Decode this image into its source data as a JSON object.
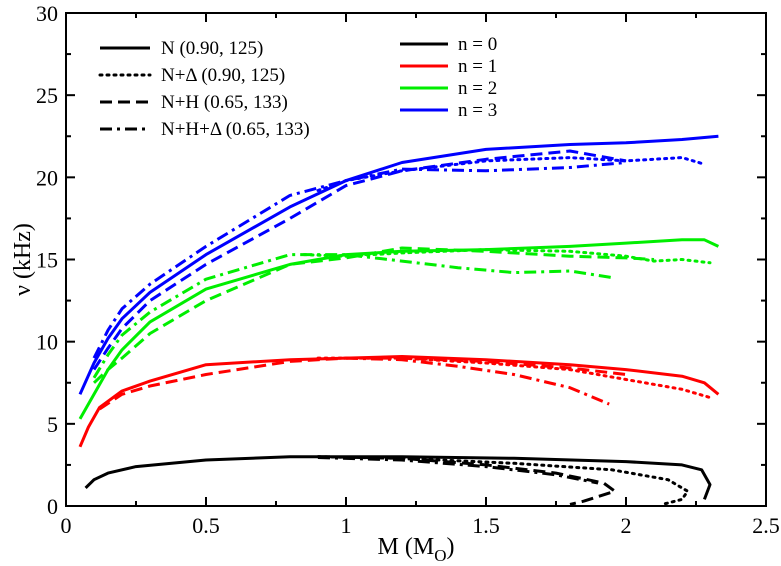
{
  "chart_data": {
    "type": "line",
    "title": "",
    "xlabel": "M (M",
    "xlabel_sub": "O",
    "xlabel_close": ")",
    "ylabel": "ν (kHz)",
    "xlim": [
      0,
      2.5
    ],
    "ylim": [
      0,
      30
    ],
    "xticks": [
      0,
      0.5,
      1,
      1.5,
      2,
      2.5
    ],
    "xtick_labels": [
      "0",
      "0.5",
      "1",
      "1.5",
      "2",
      "2.5"
    ],
    "yticks": [
      0,
      5,
      10,
      15,
      20,
      25,
      30
    ],
    "ytick_labels": [
      "0",
      "5",
      "10",
      "15",
      "20",
      "25",
      "30"
    ],
    "grid": false,
    "legend_styles": [
      {
        "label": "N (0.90, 125)",
        "dash": "solid"
      },
      {
        "label": "N+Δ (0.90, 125)",
        "dash": "dotted"
      },
      {
        "label": "N+H (0.65, 133)",
        "dash": "dashed"
      },
      {
        "label": "N+H+Δ (0.65, 133)",
        "dash": "dashdot"
      }
    ],
    "legend_modes": [
      {
        "label": "n = 0",
        "color": "#000000"
      },
      {
        "label": "n = 1",
        "color": "#ff0000"
      },
      {
        "label": "n = 2",
        "color": "#00ee00"
      },
      {
        "label": "n = 3",
        "color": "#0000ff"
      }
    ],
    "series": [
      {
        "name": "N, n=0",
        "mode": 0,
        "dash": "solid",
        "x": [
          0.07,
          0.1,
          0.15,
          0.25,
          0.5,
          0.8,
          1.2,
          1.6,
          2.0,
          2.2,
          2.27,
          2.3,
          2.28
        ],
        "y": [
          1.1,
          1.6,
          2.0,
          2.4,
          2.8,
          3.0,
          3.0,
          2.9,
          2.7,
          2.5,
          2.2,
          1.3,
          0.4
        ]
      },
      {
        "name": "N+Δ, n=0",
        "mode": 0,
        "dash": "dotted",
        "x": [
          0.9,
          1.2,
          1.6,
          1.95,
          2.15,
          2.22,
          2.2,
          2.13
        ],
        "y": [
          3.0,
          2.9,
          2.6,
          2.2,
          1.6,
          0.9,
          0.4,
          0.1
        ]
      },
      {
        "name": "N+H, n=0",
        "mode": 0,
        "dash": "dashed",
        "x": [
          0.9,
          1.2,
          1.5,
          1.75,
          1.92,
          1.96,
          1.85,
          1.8
        ],
        "y": [
          3.0,
          2.9,
          2.5,
          2.0,
          1.4,
          0.9,
          0.3,
          0.1
        ]
      },
      {
        "name": "N+H+Δ, n=0",
        "mode": 0,
        "dash": "dashdot",
        "x": [
          0.9,
          1.2,
          1.5,
          1.75,
          1.9
        ],
        "y": [
          2.95,
          2.8,
          2.4,
          1.9,
          1.4
        ]
      },
      {
        "name": "N, n=1",
        "mode": 1,
        "dash": "solid",
        "x": [
          0.05,
          0.08,
          0.12,
          0.2,
          0.3,
          0.5,
          0.8,
          1.0,
          1.2,
          1.5,
          1.8,
          2.0,
          2.2,
          2.28,
          2.33
        ],
        "y": [
          3.6,
          4.8,
          6.0,
          7.0,
          7.6,
          8.6,
          8.9,
          9.0,
          9.1,
          8.9,
          8.6,
          8.3,
          7.9,
          7.5,
          6.8
        ]
      },
      {
        "name": "N+Δ, n=1",
        "mode": 1,
        "dash": "dotted",
        "x": [
          0.9,
          1.2,
          1.5,
          1.8,
          2.0,
          2.2,
          2.3
        ],
        "y": [
          9.0,
          9.0,
          8.7,
          8.3,
          7.7,
          7.1,
          6.6
        ]
      },
      {
        "name": "N+H, n=1",
        "mode": 1,
        "dash": "dashed",
        "x": [
          0.12,
          0.2,
          0.3,
          0.5,
          0.8,
          1.0,
          1.2,
          1.5,
          1.8,
          2.0
        ],
        "y": [
          5.9,
          6.8,
          7.3,
          8.0,
          8.8,
          9.0,
          9.0,
          8.8,
          8.4,
          8.0
        ]
      },
      {
        "name": "N+H+Δ, n=1",
        "mode": 1,
        "dash": "dashdot",
        "x": [
          1.0,
          1.2,
          1.4,
          1.6,
          1.8,
          1.94
        ],
        "y": [
          9.0,
          8.9,
          8.5,
          8.0,
          7.2,
          6.2
        ]
      },
      {
        "name": "N, n=2",
        "mode": 2,
        "dash": "solid",
        "x": [
          0.05,
          0.1,
          0.15,
          0.2,
          0.3,
          0.5,
          0.8,
          1.0,
          1.2,
          1.5,
          1.8,
          2.0,
          2.2,
          2.28,
          2.33
        ],
        "y": [
          5.3,
          6.8,
          8.3,
          9.5,
          11.2,
          13.2,
          14.7,
          15.3,
          15.5,
          15.6,
          15.8,
          16.0,
          16.2,
          16.2,
          15.8
        ]
      },
      {
        "name": "N+Δ, n=2",
        "mode": 2,
        "dash": "dotted",
        "x": [
          0.85,
          1.0,
          1.2,
          1.5,
          1.8,
          2.0,
          2.1,
          2.2,
          2.3
        ],
        "y": [
          15.3,
          15.2,
          15.4,
          15.6,
          15.5,
          15.2,
          14.9,
          15.0,
          14.8
        ]
      },
      {
        "name": "N+H, n=2",
        "mode": 2,
        "dash": "dashed",
        "x": [
          0.1,
          0.15,
          0.2,
          0.3,
          0.5,
          0.8,
          1.0,
          1.2,
          1.5,
          1.8,
          2.0,
          2.1
        ],
        "y": [
          7.5,
          8.3,
          9.0,
          10.5,
          12.5,
          14.7,
          15.1,
          15.7,
          15.5,
          15.2,
          15.1,
          15.0
        ]
      },
      {
        "name": "N+H+Δ, n=2",
        "mode": 2,
        "dash": "dashdot",
        "x": [
          0.1,
          0.15,
          0.2,
          0.3,
          0.5,
          0.8,
          1.0,
          1.2,
          1.4,
          1.6,
          1.8,
          1.95
        ],
        "y": [
          7.8,
          9.2,
          10.4,
          11.8,
          13.8,
          15.3,
          15.3,
          14.9,
          14.5,
          14.2,
          14.3,
          13.9
        ]
      },
      {
        "name": "N, n=3",
        "mode": 3,
        "dash": "solid",
        "x": [
          0.05,
          0.1,
          0.15,
          0.2,
          0.3,
          0.5,
          0.8,
          1.0,
          1.2,
          1.5,
          1.8,
          2.0,
          2.2,
          2.33
        ],
        "y": [
          6.8,
          8.7,
          10.2,
          11.4,
          13.0,
          15.3,
          18.2,
          19.8,
          20.9,
          21.7,
          22.0,
          22.1,
          22.3,
          22.5
        ]
      },
      {
        "name": "N+Δ, n=3",
        "mode": 3,
        "dash": "dotted",
        "x": [
          0.9,
          1.0,
          1.2,
          1.5,
          1.8,
          2.0,
          2.2,
          2.28
        ],
        "y": [
          19.2,
          19.8,
          20.4,
          21.0,
          21.2,
          21.0,
          21.2,
          20.8
        ]
      },
      {
        "name": "N+H, n=3",
        "mode": 3,
        "dash": "dashed",
        "x": [
          0.1,
          0.15,
          0.2,
          0.3,
          0.5,
          0.8,
          1.0,
          1.2,
          1.5,
          1.8,
          2.0
        ],
        "y": [
          8.3,
          9.6,
          10.8,
          12.5,
          14.7,
          17.5,
          19.5,
          20.4,
          21.1,
          21.6,
          21.0
        ]
      },
      {
        "name": "N+H+Δ, n=3",
        "mode": 3,
        "dash": "dashdot",
        "x": [
          0.1,
          0.15,
          0.2,
          0.3,
          0.5,
          0.8,
          1.0,
          1.2,
          1.5,
          1.8,
          2.0
        ],
        "y": [
          9.0,
          10.7,
          12.0,
          13.5,
          15.8,
          18.9,
          19.8,
          20.5,
          20.4,
          20.6,
          20.9
        ]
      }
    ]
  }
}
